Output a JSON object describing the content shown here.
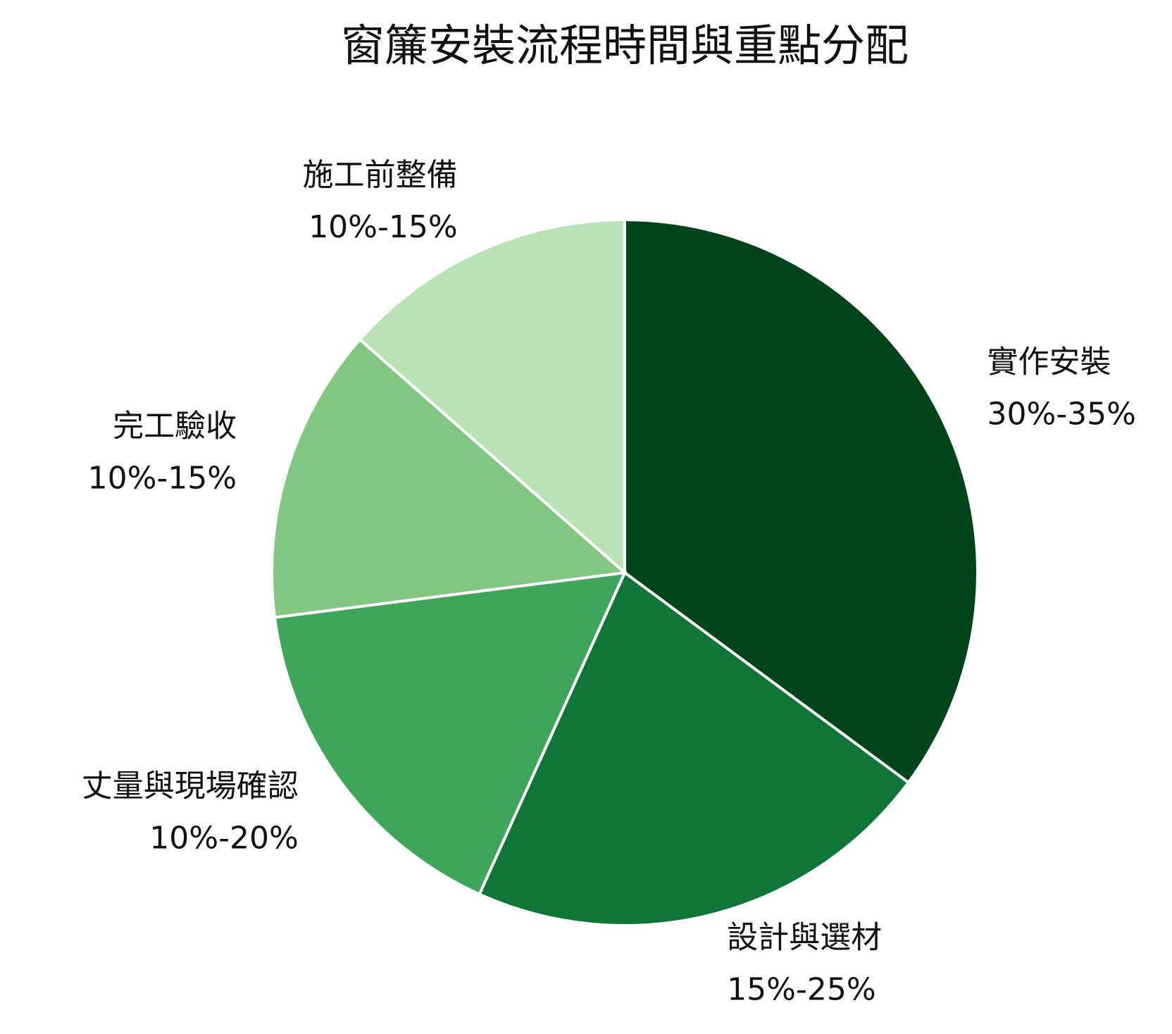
{
  "chart_data": {
    "type": "pie",
    "title": "窗簾安裝流程時間與重點分配",
    "categories": [
      "實作安裝",
      "設計與選材",
      "丈量與現場確認",
      "完工驗收",
      "施工前整備"
    ],
    "values": [
      32.5,
      20,
      15,
      12.5,
      12.5
    ],
    "value_labels": [
      "30%-35%",
      "15%-25%",
      "10%-20%",
      "10%-15%",
      "10%-15%"
    ],
    "colors": [
      "#00441b",
      "#0f7637",
      "#3ea55a",
      "#81c782",
      "#b9e3b4"
    ]
  }
}
